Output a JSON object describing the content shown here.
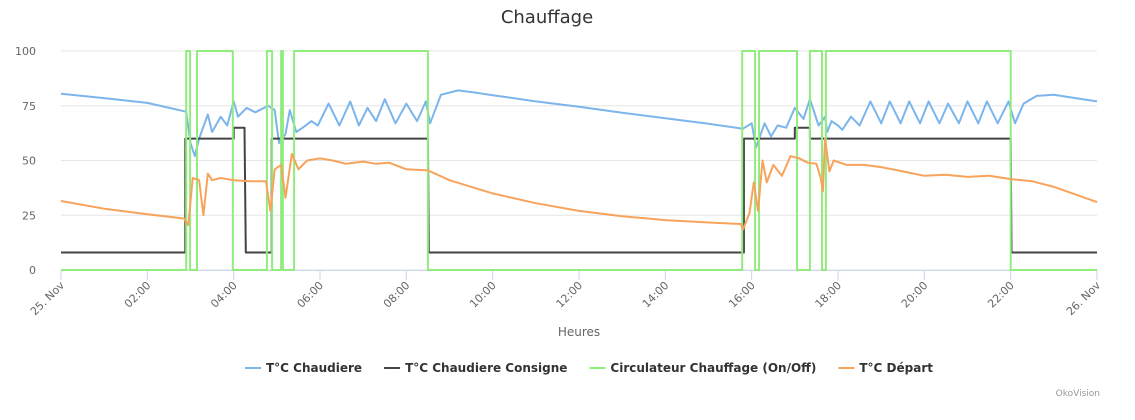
{
  "chart_data": {
    "type": "line",
    "title": "Chauffage",
    "x_label": "Heures",
    "credit": "OkoVision",
    "xlim": [
      0,
      24
    ],
    "ylim": [
      0,
      100
    ],
    "yticks": [
      0,
      25,
      50,
      75,
      100
    ],
    "grid": true,
    "legend": "bottom",
    "xticks": [
      {
        "value": 0,
        "label": "25. Nov"
      },
      {
        "value": 2,
        "label": "02:00"
      },
      {
        "value": 4,
        "label": "04:00"
      },
      {
        "value": 6,
        "label": "06:00"
      },
      {
        "value": 8,
        "label": "08:00"
      },
      {
        "value": 10,
        "label": "10:00"
      },
      {
        "value": 12,
        "label": "12:00"
      },
      {
        "value": 14,
        "label": "14:00"
      },
      {
        "value": 16,
        "label": "16:00"
      },
      {
        "value": 18,
        "label": "18:00"
      },
      {
        "value": 20,
        "label": "20:00"
      },
      {
        "value": 22,
        "label": "22:00"
      },
      {
        "value": 24,
        "label": "26. Nov"
      }
    ],
    "series": [
      {
        "name": "T°C Chaudiere",
        "color": "#7cb5ec",
        "x": [
          0,
          1,
          2,
          2.9,
          3.0,
          3.1,
          3.2,
          3.4,
          3.5,
          3.7,
          3.85,
          4.0,
          4.1,
          4.3,
          4.5,
          4.8,
          4.95,
          5.05,
          5.2,
          5.3,
          5.45,
          5.6,
          5.8,
          5.95,
          6.2,
          6.45,
          6.7,
          6.9,
          7.1,
          7.3,
          7.5,
          7.75,
          8.0,
          8.25,
          8.45,
          8.55,
          8.8,
          9.2,
          9.6,
          10,
          11,
          12,
          13,
          14,
          15,
          15.8,
          16.0,
          16.1,
          16.3,
          16.45,
          16.6,
          16.8,
          17.0,
          17.2,
          17.35,
          17.55,
          17.7,
          17.75,
          17.85,
          18.0,
          18.1,
          18.3,
          18.5,
          18.75,
          19.0,
          19.2,
          19.45,
          19.65,
          19.9,
          20.1,
          20.35,
          20.55,
          20.8,
          21.0,
          21.25,
          21.45,
          21.7,
          21.95,
          22.1,
          22.3,
          22.6,
          23,
          23.5,
          24
        ],
        "values": [
          80.5,
          78.5,
          76.3,
          72.3,
          58,
          52,
          60,
          71,
          63,
          70,
          66,
          77,
          70,
          74,
          72,
          75,
          73,
          58,
          62,
          73,
          63,
          65,
          68,
          66,
          76,
          66,
          77,
          66,
          74,
          68,
          78,
          67,
          76,
          68,
          77,
          67,
          80,
          82,
          81,
          79.8,
          77,
          74.5,
          71.8,
          69.3,
          66.8,
          64.5,
          67,
          56,
          67,
          61,
          66,
          65,
          74,
          69,
          78,
          66,
          70,
          63,
          68,
          66,
          64,
          70,
          66,
          77,
          67,
          77,
          67,
          77,
          67,
          77,
          67,
          76,
          67,
          77,
          67,
          77,
          67,
          77,
          67,
          76,
          79.5,
          80,
          78.5,
          77
        ]
      },
      {
        "name": "T°C Chaudiere Consigne",
        "color": "#434348",
        "x": [
          0,
          2.88,
          2.88,
          4.0,
          4.0,
          4.25,
          4.28,
          4.88,
          4.88,
          8.5,
          8.52,
          15.82,
          15.82,
          17.0,
          17.0,
          17.35,
          17.35,
          22.0,
          22.02,
          24
        ],
        "values": [
          8,
          8,
          60,
          60,
          65,
          65,
          8,
          8,
          60,
          60,
          8,
          8,
          60,
          60,
          65,
          65,
          60,
          60,
          8,
          8
        ]
      },
      {
        "name": "Circulateur Chauffage (On/Off)",
        "color": "#90ed7d",
        "x": [
          0,
          2.9,
          2.9,
          2.99,
          2.99,
          3.15,
          3.15,
          3.24,
          3.24,
          3.98,
          3.98,
          4.77,
          4.77,
          4.89,
          4.89,
          5.1,
          5.1,
          5.14,
          5.14,
          5.4,
          5.4,
          8.5,
          8.5,
          15.78,
          15.78,
          16.08,
          16.08,
          16.17,
          16.17,
          17.05,
          17.05,
          17.35,
          17.35,
          17.63,
          17.63,
          17.72,
          17.72,
          22.0,
          22.0,
          24
        ],
        "values": [
          0,
          0,
          100,
          100,
          0,
          0,
          100,
          100,
          100,
          100,
          0,
          0,
          100,
          100,
          0,
          0,
          100,
          100,
          0,
          0,
          100,
          100,
          0,
          0,
          100,
          100,
          0,
          0,
          100,
          100,
          0,
          0,
          100,
          100,
          0,
          0,
          100,
          100,
          0,
          0
        ]
      },
      {
        "name": "T°C Départ",
        "color": "#f7a35c",
        "x": [
          0,
          1,
          2,
          2.85,
          2.95,
          3.05,
          3.2,
          3.3,
          3.4,
          3.5,
          3.7,
          4.0,
          4.4,
          4.75,
          4.85,
          4.95,
          5.1,
          5.2,
          5.35,
          5.5,
          5.7,
          6.0,
          6.3,
          6.6,
          7,
          7.3,
          7.6,
          8,
          8.5,
          9,
          10,
          11,
          12,
          13,
          14,
          15,
          15.75,
          15.8,
          15.95,
          16.05,
          16.15,
          16.25,
          16.35,
          16.5,
          16.7,
          16.9,
          17.1,
          17.3,
          17.5,
          17.6,
          17.65,
          17.7,
          17.8,
          17.9,
          18.2,
          18.6,
          19,
          19.5,
          20,
          20.5,
          21,
          21.5,
          22,
          22.5,
          23,
          23.5,
          24
        ],
        "values": [
          31.5,
          28,
          25.5,
          23.5,
          20.5,
          42,
          41,
          25,
          44,
          41,
          42,
          41,
          40.5,
          40.5,
          27,
          46,
          48,
          33,
          53,
          46,
          50,
          51,
          50,
          48.5,
          49.5,
          48.5,
          49,
          46,
          45.5,
          41,
          35,
          30.5,
          27,
          24.5,
          22.8,
          21.7,
          21,
          18.5,
          26,
          40,
          27,
          50,
          40,
          48,
          43,
          52,
          51,
          49,
          48.5,
          42,
          36,
          60,
          45,
          50,
          48,
          48,
          47,
          45,
          43,
          43.5,
          42.5,
          43,
          41.5,
          40.5,
          38,
          34.5,
          31
        ]
      }
    ]
  }
}
